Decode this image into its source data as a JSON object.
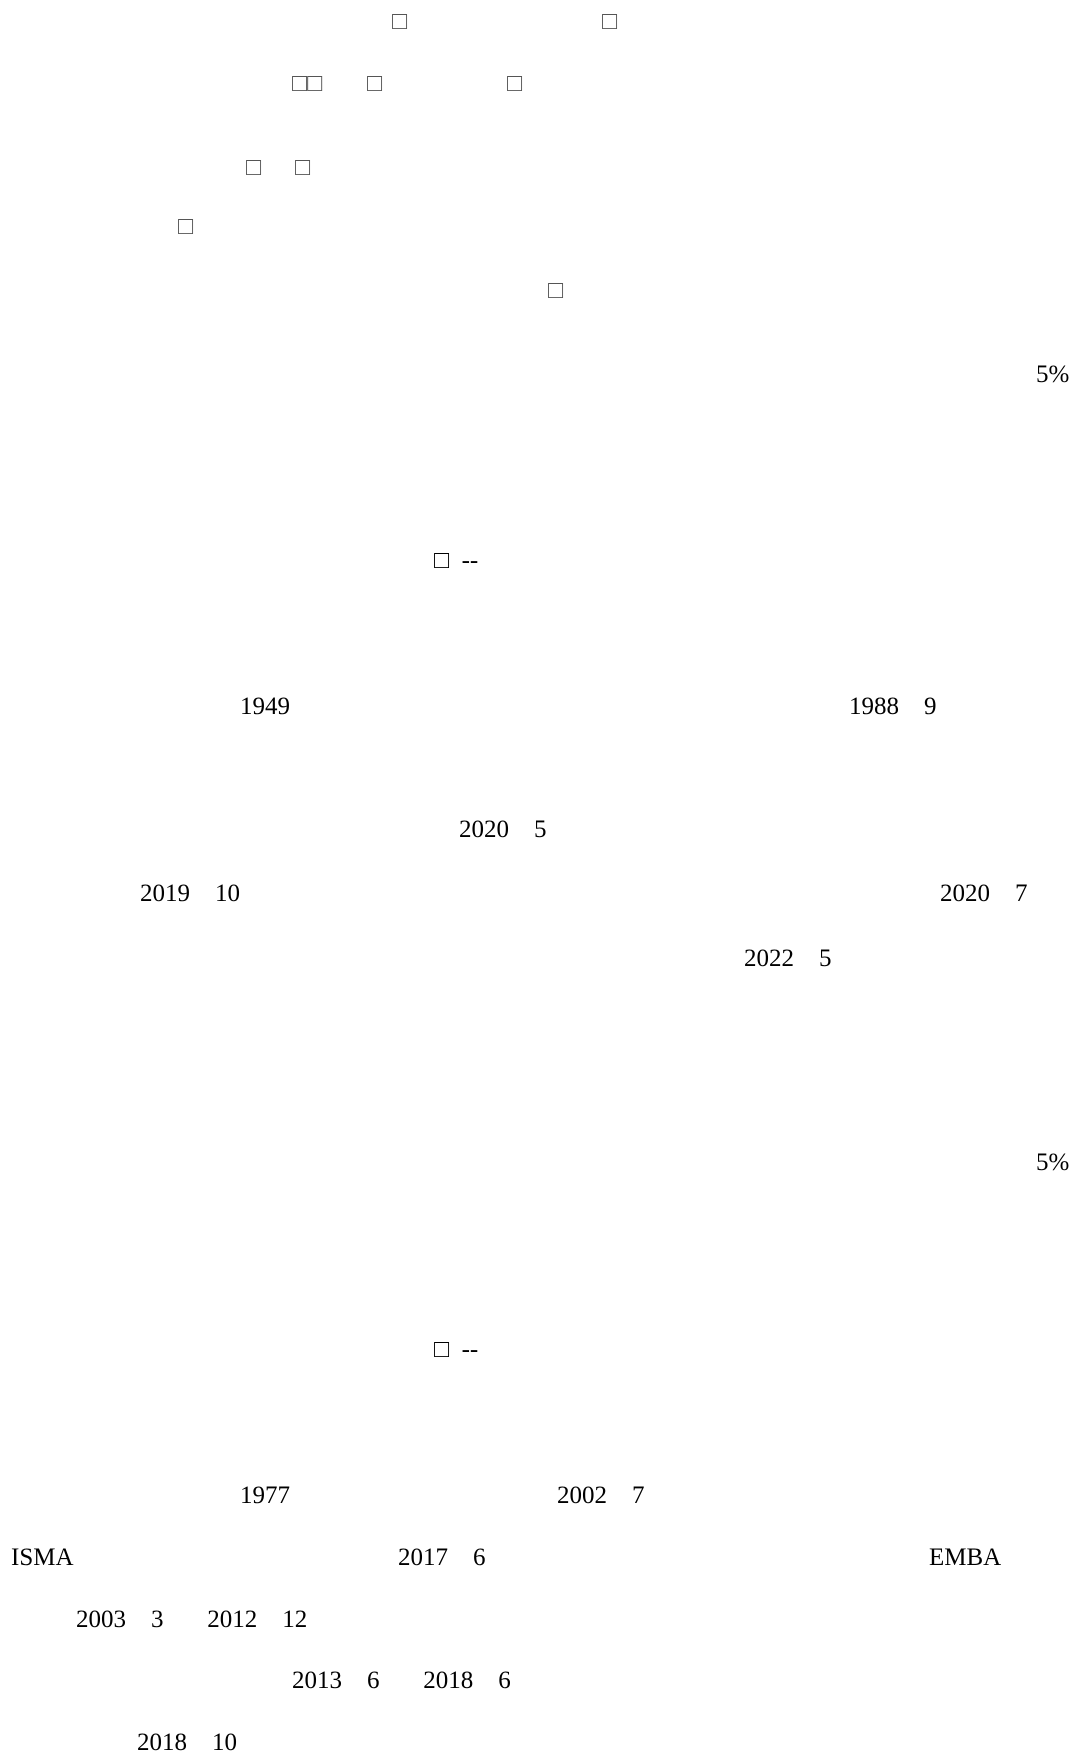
{
  "lines": [
    {
      "text": "□"
    },
    {
      "text": "□"
    },
    {
      "text": "□□"
    },
    {
      "text": "□"
    },
    {
      "text": "□"
    },
    {
      "text": "□"
    },
    {
      "text": "□"
    },
    {
      "text": "□"
    },
    {
      "text": "□"
    },
    {
      "text": "5%"
    },
    {
      "text": "□  --"
    },
    {
      "text": "1949"
    },
    {
      "text": "1988    9"
    },
    {
      "text": "2020    5"
    },
    {
      "text": "2019    10"
    },
    {
      "text": "2020    7"
    },
    {
      "text": "2022    5"
    },
    {
      "text": "5%"
    },
    {
      "text": "□  --"
    },
    {
      "text": "1977"
    },
    {
      "text": "2002    7"
    },
    {
      "text": "ISMA"
    },
    {
      "text": "2017    6"
    },
    {
      "text": "EMBA"
    },
    {
      "text": "2003    3       2012    12"
    },
    {
      "text": "2013    6       2018    6"
    },
    {
      "text": "2018    10"
    }
  ]
}
